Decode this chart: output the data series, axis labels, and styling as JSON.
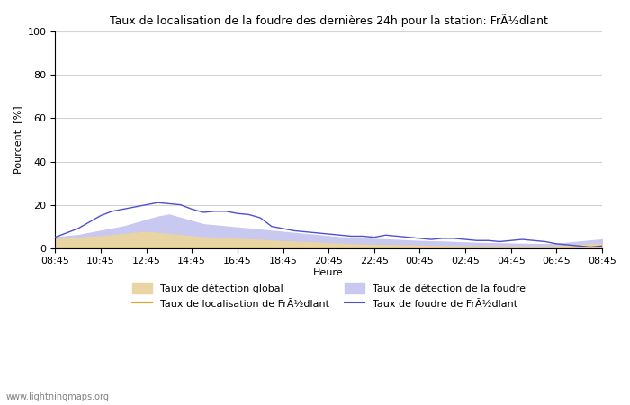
{
  "title": "Taux de localisation de la foudre des dernières 24h pour la station: FrÃ½dlant",
  "ylabel": "Pourcent  [%]",
  "xlabel": "Heure",
  "xlim": [
    0,
    48
  ],
  "ylim": [
    0,
    100
  ],
  "yticks": [
    0,
    20,
    40,
    60,
    80,
    100
  ],
  "xtick_labels": [
    "08:45",
    "10:45",
    "12:45",
    "14:45",
    "16:45",
    "18:45",
    "20:45",
    "22:45",
    "00:45",
    "02:45",
    "04:45",
    "06:45",
    "08:45"
  ],
  "xtick_positions": [
    0,
    4,
    8,
    12,
    16,
    20,
    24,
    28,
    32,
    36,
    40,
    44,
    48
  ],
  "watermark": "www.lightningmaps.org",
  "legend": [
    {
      "label": "Taux de détection global",
      "type": "patch",
      "color": "#e8d5a3"
    },
    {
      "label": "Taux de localisation de FrÃ½dlant",
      "type": "line",
      "color": "#e8a020"
    },
    {
      "label": "Taux de détection de la foudre",
      "type": "patch",
      "color": "#c8c8f0"
    },
    {
      "label": "Taux de foudre de FrÃ½dlant",
      "type": "line",
      "color": "#5050d0"
    }
  ],
  "global_detection": [
    4,
    4.5,
    4.8,
    5.2,
    5.5,
    6.0,
    6.5,
    7.0,
    7.5,
    7.0,
    6.5,
    6.0,
    5.5,
    5.0,
    4.8,
    4.5,
    4.2,
    4.0,
    3.8,
    3.5,
    3.2,
    3.0,
    2.8,
    2.5,
    2.2,
    2.0,
    1.8,
    1.6,
    1.5,
    1.4,
    1.3,
    1.2,
    1.1,
    1.0,
    1.0,
    0.9,
    0.8,
    0.7,
    0.7,
    0.6,
    0.6,
    0.5,
    0.5,
    0.5,
    0.8,
    1.2,
    1.5,
    1.8,
    2.0
  ],
  "foudre_detection": [
    5,
    5.5,
    6.0,
    7.0,
    8.0,
    9.0,
    10.0,
    11.5,
    13.0,
    14.5,
    15.5,
    14.0,
    12.5,
    11.0,
    10.5,
    10.0,
    9.5,
    9.0,
    8.5,
    8.0,
    7.5,
    7.0,
    6.5,
    6.0,
    5.5,
    5.0,
    4.8,
    4.5,
    4.2,
    4.0,
    3.8,
    3.5,
    3.3,
    3.1,
    3.0,
    2.8,
    2.6,
    2.4,
    2.3,
    2.2,
    2.1,
    2.0,
    1.9,
    1.8,
    2.0,
    2.5,
    3.0,
    3.5,
    4.0
  ],
  "localisation_line": [
    0,
    0,
    0,
    0,
    0,
    0,
    0,
    0,
    0,
    0,
    0,
    0,
    0,
    0,
    0,
    0,
    0,
    0,
    0,
    0,
    0,
    0,
    0,
    0,
    0,
    0,
    0,
    0,
    0,
    0,
    0,
    0,
    0,
    0,
    0,
    0,
    0,
    0,
    0,
    0,
    0,
    0,
    0,
    0,
    0,
    0,
    0,
    0,
    0
  ],
  "foudre_line": [
    5,
    7,
    9,
    12,
    15,
    17,
    18,
    19,
    20,
    21,
    20.5,
    20,
    18,
    16.5,
    17,
    17,
    16,
    15.5,
    14,
    10,
    9,
    8,
    7.5,
    7,
    6.5,
    6,
    5.5,
    5.5,
    5,
    6,
    5.5,
    5,
    4.5,
    4,
    4.5,
    4.5,
    4,
    3.5,
    3.5,
    3,
    3.5,
    4,
    3.5,
    3,
    2,
    1.5,
    1,
    0.5,
    1
  ]
}
